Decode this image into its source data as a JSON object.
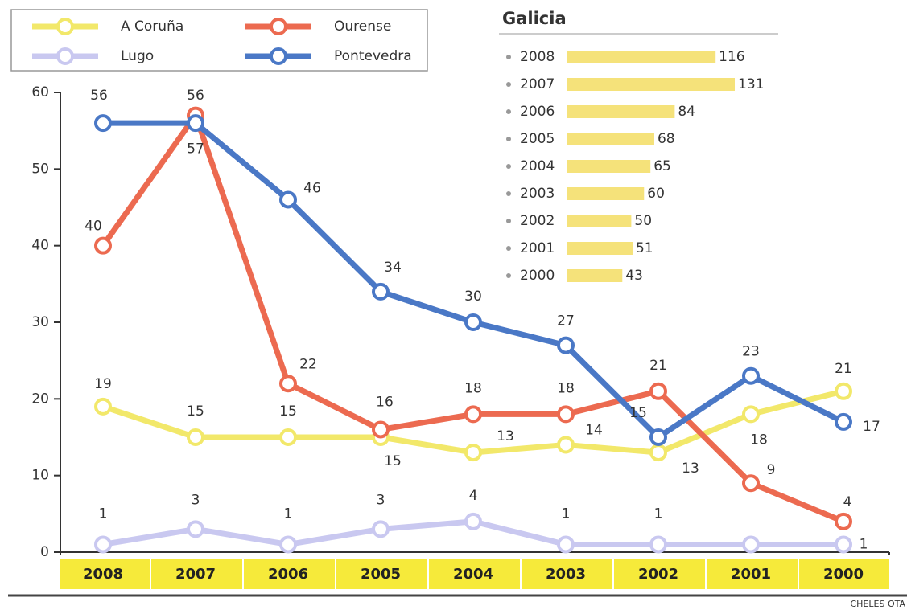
{
  "chart_data": [
    {
      "type": "line",
      "categories": [
        "2008",
        "2007",
        "2006",
        "2005",
        "2004",
        "2003",
        "2002",
        "2001",
        "2000"
      ],
      "series": [
        {
          "name": "A Coruña",
          "color": "#f2e86a",
          "values": [
            19,
            15,
            15,
            15,
            13,
            14,
            13,
            18,
            21
          ]
        },
        {
          "name": "Ourense",
          "color": "#ec6a50",
          "values": [
            40,
            57,
            22,
            16,
            18,
            18,
            21,
            9,
            4
          ]
        },
        {
          "name": "Lugo",
          "color": "#c9c8f0",
          "values": [
            1,
            3,
            1,
            3,
            4,
            1,
            1,
            1,
            1
          ],
          "value_labels": [
            "1",
            "3",
            "1",
            "3",
            "4",
            "1",
            "1",
            null,
            "1"
          ]
        },
        {
          "name": "Pontevedra",
          "color": "#4a78c6",
          "values": [
            56,
            56,
            46,
            34,
            30,
            27,
            15,
            23,
            17
          ]
        }
      ],
      "ylim": [
        0,
        60
      ],
      "yticks": [
        0,
        10,
        20,
        30,
        40,
        50,
        60
      ],
      "legend": "top-left"
    },
    {
      "type": "hbar",
      "title": "Galicia",
      "categories": [
        "2008",
        "2007",
        "2006",
        "2005",
        "2004",
        "2003",
        "2002",
        "2001",
        "2000"
      ],
      "values": [
        116,
        131,
        84,
        68,
        65,
        60,
        50,
        51,
        43
      ],
      "color": "#f5e27a"
    }
  ],
  "credit": "CHELES OTA"
}
